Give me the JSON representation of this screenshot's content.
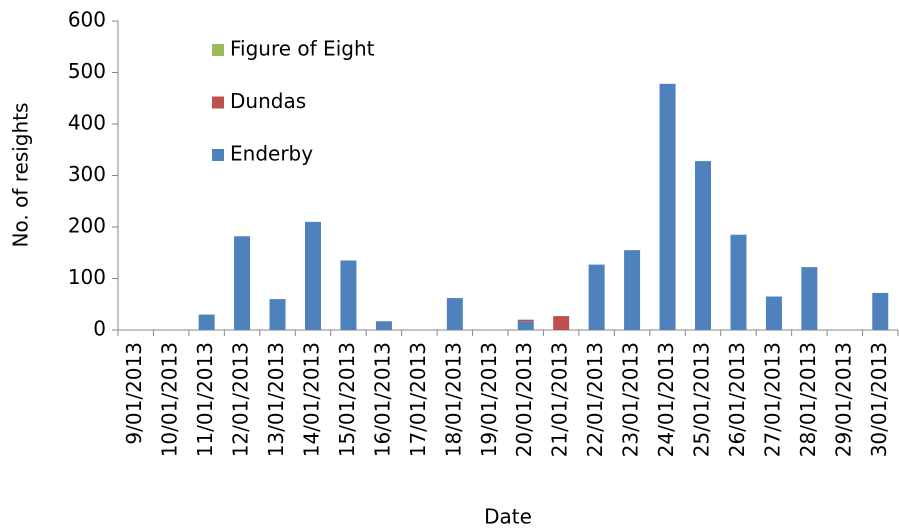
{
  "chart_data": {
    "type": "bar",
    "stacked": true,
    "x_label": "Date",
    "y_label": "No. of resights",
    "categories": [
      "9/01/2013",
      "10/01/2013",
      "11/01/2013",
      "12/01/2013",
      "13/01/2013",
      "14/01/2013",
      "15/01/2013",
      "16/01/2013",
      "17/01/2013",
      "18/01/2013",
      "19/01/2013",
      "20/01/2013",
      "21/01/2013",
      "22/01/2013",
      "23/01/2013",
      "24/01/2013",
      "25/01/2013",
      "26/01/2013",
      "27/01/2013",
      "28/01/2013",
      "29/01/2013",
      "30/01/2013"
    ],
    "series": [
      {
        "name": "Enderby",
        "color": "#4f81bd",
        "values": [
          0,
          0,
          30,
          182,
          60,
          210,
          135,
          17,
          0,
          62,
          0,
          17,
          0,
          127,
          155,
          478,
          328,
          185,
          65,
          122,
          0,
          72
        ]
      },
      {
        "name": "Dundas",
        "color": "#c0504d",
        "values": [
          0,
          0,
          0,
          0,
          0,
          0,
          0,
          0,
          0,
          0,
          0,
          3,
          27,
          0,
          0,
          0,
          0,
          0,
          0,
          0,
          0,
          0
        ]
      },
      {
        "name": "Figure of Eight",
        "color": "#9bbb59",
        "values": [
          0,
          0,
          0,
          0,
          0,
          0,
          0,
          0,
          0,
          0,
          0,
          0,
          0,
          0,
          0,
          0,
          0,
          0,
          0,
          0,
          0,
          0
        ]
      }
    ],
    "ylim": [
      0,
      600
    ],
    "yticks": [
      0,
      100,
      200,
      300,
      400,
      500,
      600
    ],
    "grid": false,
    "legend": "upper left"
  }
}
